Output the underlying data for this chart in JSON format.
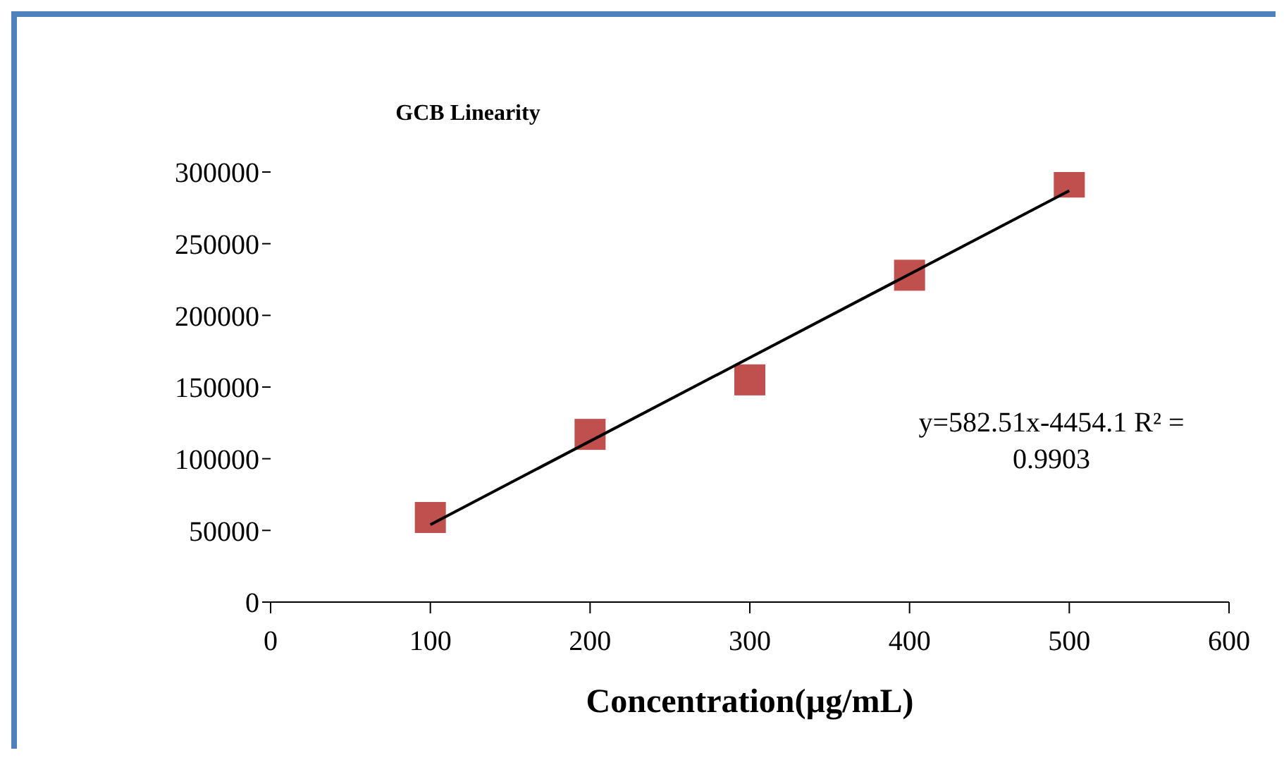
{
  "chart_data": {
    "type": "scatter",
    "title": "GCB Linearity",
    "xlabel": "Concentration(µg/mL)",
    "series": [
      {
        "color": "#c0504d",
        "x": [
          100,
          200,
          300,
          400,
          500
        ],
        "values": [
          59000,
          117000,
          155000,
          228000,
          293000
        ],
        "marker": "square"
      },
      {
        "type": "line",
        "color": "#000000",
        "x": [
          100,
          500
        ],
        "values": [
          54000,
          287000
        ],
        "marker": "none",
        "line_style": "solid"
      }
    ],
    "xlim": [
      0,
      600
    ],
    "xticks": [
      0,
      100,
      200,
      300,
      400,
      500,
      600
    ],
    "ylim": [
      0,
      300000
    ],
    "yticks": [
      0,
      50000,
      100000,
      150000,
      200000,
      250000,
      300000
    ],
    "grid": false,
    "legend": false,
    "annotations": [
      "y=582.51x-4454.1 R² = 0.9903"
    ]
  }
}
